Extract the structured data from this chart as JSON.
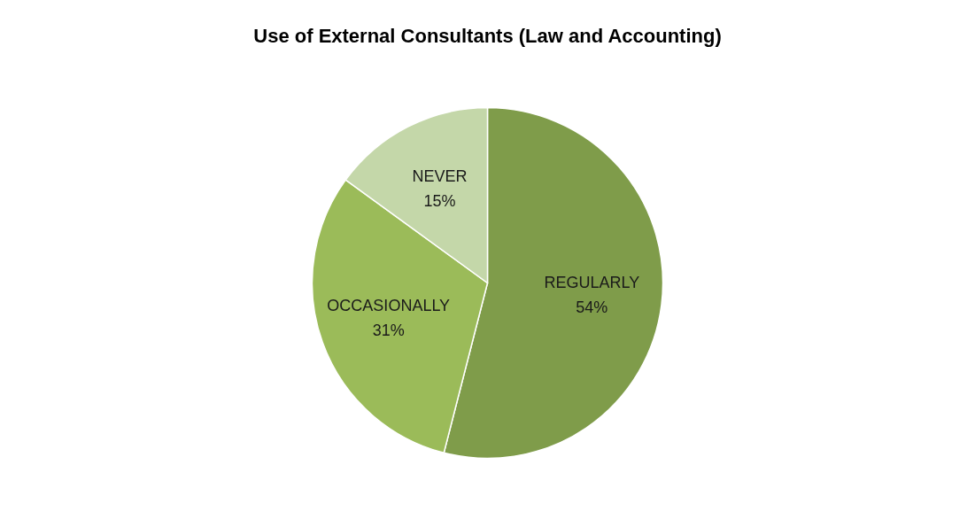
{
  "chart_data": {
    "type": "pie",
    "title": "Use of External Consultants (Law and Accounting)",
    "categories": [
      "REGULARLY",
      "OCCASIONALLY",
      "NEVER"
    ],
    "values": [
      54,
      31,
      15
    ],
    "value_labels": [
      "54%",
      "31%",
      "15%"
    ],
    "colors": [
      "#7f9c4a",
      "#9bbb59",
      "#c4d7a9"
    ],
    "legend": false
  }
}
